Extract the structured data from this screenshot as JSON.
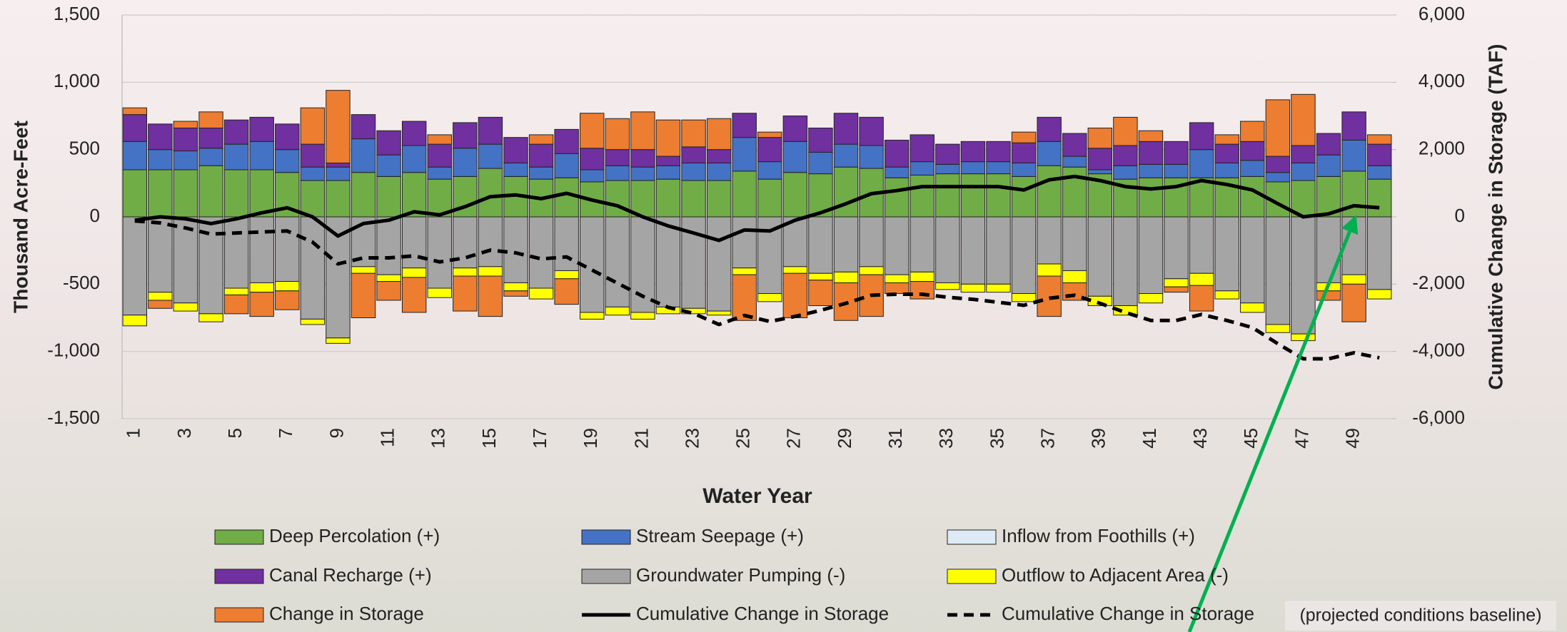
{
  "chart_data": {
    "type": "bar",
    "x_label": "Water Year",
    "y_label": "Thousand Acre-Feet",
    "y2_label": "Cumulative Change in Storage (TAF)",
    "annotation": "(projected conditions baseline)",
    "categories": [
      1,
      null,
      3,
      null,
      5,
      null,
      7,
      null,
      9,
      null,
      11,
      null,
      13,
      null,
      15,
      null,
      17,
      null,
      19,
      null,
      21,
      null,
      23,
      null,
      25,
      null,
      27,
      null,
      29,
      null,
      31,
      null,
      33,
      null,
      35,
      null,
      37,
      null,
      39,
      null,
      41,
      null,
      43,
      null,
      45,
      null,
      47,
      null,
      49,
      null
    ],
    "ylim": [
      -1500,
      1500
    ],
    "yticks": [
      {
        "value": -1500,
        "label": "-1,500"
      },
      {
        "value": -1000,
        "label": "-1,000"
      },
      -500,
      0,
      500,
      {
        "value": 1000,
        "label": "1,000"
      },
      {
        "value": 1500,
        "label": "1,500"
      }
    ],
    "y2lim": [
      -6000,
      6000
    ],
    "y2ticks": [
      {
        "value": -6000,
        "label": "-6,000"
      },
      {
        "value": -4000,
        "label": "-4,000"
      },
      {
        "value": -2000,
        "label": "-2,000"
      },
      0,
      {
        "value": 2000,
        "label": "2,000"
      },
      {
        "value": 4000,
        "label": "4,000"
      },
      {
        "value": 6000,
        "label": "6,000"
      }
    ],
    "grid": true,
    "series": [
      {
        "name": "Deep Percolation (+)",
        "type": "bar",
        "color": "#70ad47",
        "values": [
          350,
          350,
          350,
          380,
          350,
          350,
          330,
          270,
          270,
          330,
          300,
          330,
          280,
          300,
          360,
          300,
          280,
          290,
          260,
          270,
          270,
          280,
          270,
          270,
          340,
          280,
          330,
          320,
          370,
          360,
          290,
          310,
          320,
          320,
          320,
          300,
          380,
          370,
          320,
          280,
          290,
          290,
          290,
          290,
          300,
          260,
          270,
          300,
          340,
          280
        ]
      },
      {
        "name": "Stream Seepage (+)",
        "type": "bar",
        "color": "#4472c4",
        "values": [
          210,
          150,
          140,
          130,
          190,
          210,
          170,
          100,
          100,
          250,
          160,
          200,
          90,
          210,
          180,
          100,
          90,
          180,
          90,
          110,
          100,
          100,
          130,
          130,
          250,
          130,
          230,
          160,
          170,
          170,
          80,
          100,
          70,
          90,
          90,
          100,
          180,
          80,
          30,
          100,
          100,
          100,
          210,
          110,
          120,
          70,
          130,
          160,
          230,
          100
        ]
      },
      {
        "name": "Inflow from Foothills (+)",
        "type": "bar",
        "color": "#deebf7",
        "values": [
          0,
          0,
          0,
          0,
          0,
          0,
          0,
          0,
          0,
          0,
          0,
          0,
          0,
          0,
          0,
          0,
          0,
          0,
          0,
          0,
          0,
          0,
          0,
          0,
          0,
          0,
          0,
          0,
          0,
          0,
          0,
          0,
          0,
          0,
          0,
          0,
          0,
          0,
          0,
          0,
          0,
          0,
          0,
          0,
          0,
          0,
          0,
          0,
          0,
          0
        ]
      },
      {
        "name": "Canal Recharge (+)",
        "type": "bar",
        "color": "#7030a0",
        "values": [
          200,
          190,
          170,
          150,
          180,
          180,
          190,
          170,
          30,
          180,
          180,
          180,
          170,
          190,
          200,
          190,
          170,
          180,
          160,
          120,
          130,
          70,
          120,
          100,
          180,
          180,
          190,
          180,
          230,
          210,
          200,
          200,
          150,
          150,
          150,
          150,
          180,
          170,
          160,
          150,
          170,
          170,
          200,
          140,
          140,
          120,
          130,
          160,
          210,
          160
        ]
      },
      {
        "name": "Groundwater Pumping (-)",
        "type": "bar",
        "color": "#a5a5a5",
        "values": [
          -730,
          -560,
          -640,
          -720,
          -530,
          -490,
          -480,
          -760,
          -900,
          -370,
          -430,
          -380,
          -530,
          -380,
          -370,
          -490,
          -530,
          -400,
          -710,
          -670,
          -710,
          -670,
          -680,
          -700,
          -380,
          -570,
          -370,
          -420,
          -410,
          -370,
          -430,
          -410,
          -490,
          -500,
          -500,
          -570,
          -350,
          -400,
          -590,
          -660,
          -570,
          -460,
          -420,
          -550,
          -640,
          -800,
          -870,
          -490,
          -430,
          -540
        ]
      },
      {
        "name": "Outflow to Adjacent Area (-)",
        "type": "bar",
        "color": "#ffff00",
        "values": [
          -80,
          -60,
          -60,
          -60,
          -50,
          -70,
          -70,
          -40,
          -40,
          -50,
          -50,
          -70,
          -70,
          -60,
          -70,
          -60,
          -80,
          -60,
          -50,
          -60,
          -50,
          -50,
          -40,
          -30,
          -50,
          -60,
          -50,
          -50,
          -80,
          -60,
          -60,
          -70,
          -50,
          -60,
          -60,
          -60,
          -90,
          -90,
          -70,
          -70,
          -70,
          -60,
          -90,
          -60,
          -70,
          -60,
          -50,
          -60,
          -70,
          -70
        ]
      },
      {
        "name": "Change in Storage",
        "type": "bar",
        "color": "#ed7d31",
        "values": [
          50,
          -60,
          50,
          120,
          -140,
          -180,
          -140,
          270,
          540,
          -330,
          -140,
          -260,
          70,
          -260,
          -300,
          -40,
          70,
          -190,
          260,
          230,
          280,
          270,
          200,
          230,
          -340,
          40,
          -330,
          -190,
          -280,
          -310,
          -80,
          -130,
          0,
          0,
          0,
          80,
          -300,
          -130,
          150,
          210,
          80,
          -40,
          -190,
          70,
          150,
          420,
          380,
          -70,
          -280,
          70
        ]
      },
      {
        "name": "Cumulative Change in Storage",
        "type": "line",
        "axis": "y2",
        "color": "#000000",
        "dashed": false,
        "values": [
          -100,
          0,
          -60,
          -200,
          -60,
          120,
          270,
          0,
          -570,
          -200,
          -100,
          150,
          60,
          300,
          600,
          650,
          540,
          700,
          500,
          330,
          0,
          -270,
          -480,
          -700,
          -390,
          -420,
          -100,
          120,
          390,
          690,
          780,
          900,
          900,
          900,
          900,
          800,
          1100,
          1200,
          1080,
          900,
          830,
          900,
          1080,
          960,
          800,
          390,
          0,
          90,
          330,
          270
        ]
      },
      {
        "name": "Cumulative Change in Storage",
        "type": "line",
        "axis": "y2",
        "color": "#000000",
        "dashed": true,
        "values": [
          -120,
          -180,
          -330,
          -510,
          -480,
          -450,
          -420,
          -750,
          -1400,
          -1220,
          -1220,
          -1160,
          -1340,
          -1220,
          -990,
          -1070,
          -1250,
          -1190,
          -1580,
          -1970,
          -2360,
          -2690,
          -2870,
          -3200,
          -2930,
          -3110,
          -2960,
          -2780,
          -2570,
          -2330,
          -2300,
          -2300,
          -2390,
          -2450,
          -2540,
          -2630,
          -2420,
          -2330,
          -2570,
          -2840,
          -3080,
          -3080,
          -2900,
          -3080,
          -3290,
          -3770,
          -4220,
          -4220,
          -4040,
          -4190
        ]
      }
    ]
  }
}
